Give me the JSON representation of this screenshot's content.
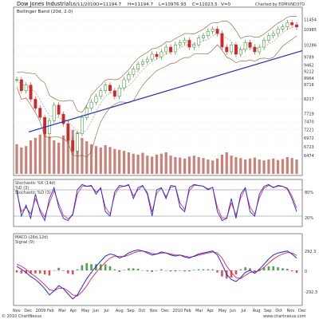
{
  "chart_data": {
    "type": "stock-chart",
    "header": {
      "title": "Dow Jones Industrial",
      "date": "16/11/2010",
      "open": "O=11194.7",
      "high": "H=11194.7",
      "low": "L=10976.93",
      "close": "C=11023.5",
      "volume": "V=0",
      "credit": "Charted by EDMUND37D"
    },
    "price_panel": {
      "legend": "Bollinger Band (20d, 2.0)",
      "scale": "log",
      "ylim": [
        6000,
        11700
      ],
      "y_ticks": [
        "11454",
        "10985",
        "10286",
        "9789",
        "9462",
        "9212",
        "8964",
        "8716",
        "8217",
        "7719",
        "7470",
        "7221",
        "6972",
        "6723",
        "6474"
      ],
      "price_series": [
        [
          0,
          8900
        ],
        [
          1,
          8500
        ],
        [
          2,
          8700
        ],
        [
          3,
          8200
        ],
        [
          4,
          7900
        ],
        [
          5,
          7600
        ],
        [
          6,
          7100
        ],
        [
          7,
          7500
        ],
        [
          8,
          8000
        ],
        [
          9,
          7700
        ],
        [
          10,
          7400
        ],
        [
          11,
          6900
        ],
        [
          12,
          6600
        ],
        [
          13,
          7100
        ],
        [
          14,
          7600
        ],
        [
          15,
          7900
        ],
        [
          16,
          8100
        ],
        [
          17,
          8300
        ],
        [
          18,
          8500
        ],
        [
          19,
          8700
        ],
        [
          20,
          8500
        ],
        [
          21,
          8300
        ],
        [
          22,
          8600
        ],
        [
          23,
          8900
        ],
        [
          24,
          9100
        ],
        [
          25,
          9300
        ],
        [
          26,
          9500
        ],
        [
          27,
          9600
        ],
        [
          28,
          9700
        ],
        [
          29,
          9900
        ],
        [
          30,
          9800
        ],
        [
          31,
          10000
        ],
        [
          32,
          10200
        ],
        [
          33,
          10000
        ],
        [
          34,
          10300
        ],
        [
          35,
          10400
        ],
        [
          36,
          10500
        ],
        [
          37,
          10200
        ],
        [
          38,
          10300
        ],
        [
          39,
          10600
        ],
        [
          40,
          10700
        ],
        [
          41,
          10900
        ],
        [
          42,
          11000
        ],
        [
          43,
          10800
        ],
        [
          44,
          10200
        ],
        [
          45,
          10000
        ],
        [
          46,
          10300
        ],
        [
          47,
          9900
        ],
        [
          48,
          10100
        ],
        [
          49,
          10400
        ],
        [
          50,
          10200
        ],
        [
          51,
          10000
        ],
        [
          52,
          10200
        ],
        [
          53,
          10500
        ],
        [
          54,
          10700
        ],
        [
          55,
          10800
        ],
        [
          56,
          11000
        ],
        [
          57,
          11100
        ],
        [
          58,
          11300
        ],
        [
          59,
          11200
        ],
        [
          60,
          11100
        ]
      ],
      "trendline": [
        [
          0,
          7150
        ],
        [
          60,
          10050
        ]
      ],
      "volume_bars": [
        62,
        55,
        58,
        70,
        75,
        82,
        90,
        78,
        70,
        65,
        80,
        88,
        92,
        86,
        75,
        68,
        62,
        58,
        55,
        60,
        56,
        52,
        50,
        48,
        45,
        42,
        40,
        44,
        38,
        36,
        40,
        42,
        45,
        38,
        35,
        34,
        32,
        36,
        38,
        35,
        33,
        30,
        28,
        32,
        40,
        45,
        38,
        35,
        33,
        30,
        32,
        34,
        30,
        28,
        30,
        32,
        29,
        31,
        35,
        33,
        30
      ]
    },
    "stochastic_panel": {
      "legend_1": "Stochastic %K (14d)",
      "legend_2": "%D (3)",
      "legend_3": "Stochastic %D (3)",
      "levels": [
        "80%",
        "20%"
      ],
      "k_series": [
        80,
        20,
        45,
        15,
        70,
        30,
        10,
        60,
        85,
        40,
        15,
        10,
        25,
        80,
        92,
        88,
        90,
        70,
        85,
        30,
        20,
        75,
        90,
        88,
        92,
        60,
        85,
        90,
        70,
        20,
        80,
        85,
        60,
        90,
        88,
        40,
        30,
        85,
        92,
        90,
        88,
        80,
        86,
        30,
        10,
        15,
        60,
        15,
        70,
        85,
        30,
        20,
        70,
        88,
        92,
        85,
        90,
        88,
        82,
        60,
        30
      ],
      "d_series": [
        75,
        30,
        40,
        25,
        60,
        35,
        18,
        50,
        78,
        48,
        22,
        14,
        22,
        70,
        88,
        88,
        88,
        75,
        82,
        40,
        25,
        68,
        86,
        88,
        90,
        66,
        80,
        88,
        74,
        30,
        72,
        84,
        64,
        86,
        88,
        50,
        35,
        78,
        90,
        90,
        88,
        82,
        85,
        40,
        16,
        16,
        50,
        22,
        62,
        82,
        40,
        25,
        62,
        84,
        90,
        86,
        88,
        88,
        84,
        66,
        38
      ]
    },
    "macd_panel": {
      "legend_1": "MACD (26d,12d)",
      "legend_2": "Signal (9)",
      "y_ticks": [
        "292.3",
        "0",
        "-292.3"
      ],
      "macd_series": [
        40,
        10,
        -20,
        -60,
        -90,
        -130,
        -180,
        -240,
        -200,
        -150,
        -180,
        -230,
        -280,
        -240,
        -160,
        -80,
        -20,
        40,
        90,
        140,
        160,
        150,
        120,
        140,
        170,
        190,
        200,
        190,
        170,
        150,
        160,
        180,
        170,
        150,
        140,
        150,
        130,
        120,
        140,
        160,
        170,
        180,
        190,
        150,
        60,
        -40,
        -90,
        -110,
        -70,
        -20,
        0,
        -30,
        10,
        60,
        110,
        150,
        170,
        180,
        190,
        160,
        120
      ],
      "signal_series": [
        60,
        40,
        10,
        -30,
        -60,
        -100,
        -140,
        -190,
        -200,
        -175,
        -175,
        -200,
        -240,
        -250,
        -210,
        -150,
        -80,
        -20,
        30,
        80,
        120,
        140,
        135,
        135,
        150,
        170,
        185,
        190,
        180,
        165,
        160,
        170,
        170,
        160,
        150,
        150,
        140,
        130,
        135,
        150,
        160,
        170,
        180,
        170,
        120,
        40,
        -20,
        -70,
        -80,
        -50,
        -20,
        -15,
        -5,
        30,
        70,
        110,
        140,
        160,
        175,
        170,
        145
      ]
    },
    "x_tick_labels": [
      "Nov",
      "Dec",
      "2009",
      "Feb",
      "Mar",
      "Apr",
      "May",
      "Jun",
      "Jul",
      "Aug",
      "Sep",
      "Oct",
      "Nov",
      "Dec",
      "2010",
      "Feb",
      "Mar",
      "Apr",
      "May",
      "Jun",
      "Jul",
      "Aug",
      "Sep",
      "Oct",
      "Nov",
      "Dec"
    ],
    "footer_left": "© 2010 ChartNexus",
    "footer_right": "www.chartnexus.com"
  },
  "colors": {
    "up": "#1e8c1e",
    "down": "#d02828",
    "band": "#8b5a2b",
    "trend": "#1e2ad0",
    "k_line": "#1f2ad8",
    "d_line": "#e02060",
    "macd_line": "#1f2ad8",
    "signal_line": "#e02060",
    "volume": "#b8574a",
    "grid": "#d9d9d9"
  }
}
